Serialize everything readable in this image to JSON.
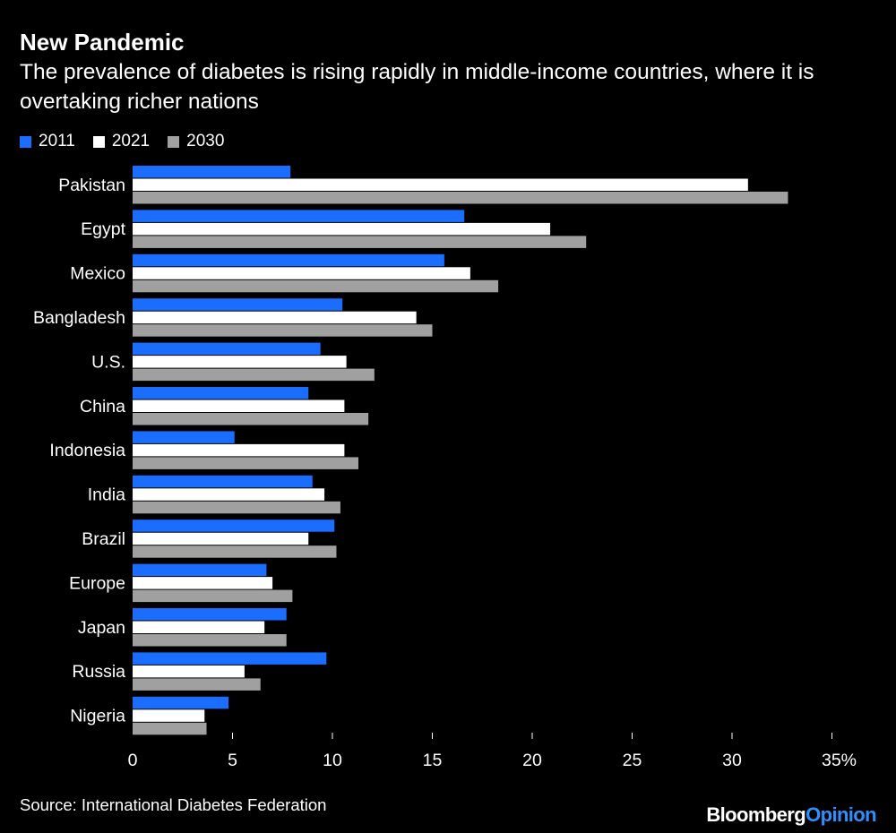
{
  "header": {
    "title": "New Pandemic",
    "subtitle": "The prevalence of diabetes is rising rapidly in middle-income countries, where it is overtaking richer nations"
  },
  "legend": [
    {
      "label": "2011",
      "color": "#1a6dff"
    },
    {
      "label": "2021",
      "color": "#ffffff"
    },
    {
      "label": "2030",
      "color": "#a0a0a0"
    }
  ],
  "chart_data": {
    "type": "bar",
    "orientation": "horizontal",
    "categories": [
      "Pakistan",
      "Egypt",
      "Mexico",
      "Bangladesh",
      "U.S.",
      "China",
      "Indonesia",
      "India",
      "Brazil",
      "Europe",
      "Japan",
      "Russia",
      "Nigeria"
    ],
    "series": [
      {
        "name": "2011",
        "color": "#1a6dff",
        "values": [
          7.9,
          16.6,
          15.6,
          10.5,
          9.4,
          8.8,
          5.1,
          9.0,
          10.1,
          6.7,
          7.7,
          9.7,
          4.8
        ]
      },
      {
        "name": "2021",
        "color": "#ffffff",
        "values": [
          30.8,
          20.9,
          16.9,
          14.2,
          10.7,
          10.6,
          10.6,
          9.6,
          8.8,
          7.0,
          6.6,
          5.6,
          3.6
        ]
      },
      {
        "name": "2030",
        "color": "#a0a0a0",
        "values": [
          32.8,
          22.7,
          18.3,
          15.0,
          12.1,
          11.8,
          11.3,
          10.4,
          10.2,
          8.0,
          7.7,
          6.4,
          3.7
        ]
      }
    ],
    "x_ticks": [
      "0",
      "5",
      "10",
      "15",
      "20",
      "25",
      "30",
      "35%"
    ],
    "xlim": [
      0,
      35
    ],
    "grid": false,
    "legend_position": "top-left"
  },
  "footer": {
    "source": "Source: International Diabetes Federation",
    "brand_main": "Bloomberg",
    "brand_accent": "Opinion"
  }
}
